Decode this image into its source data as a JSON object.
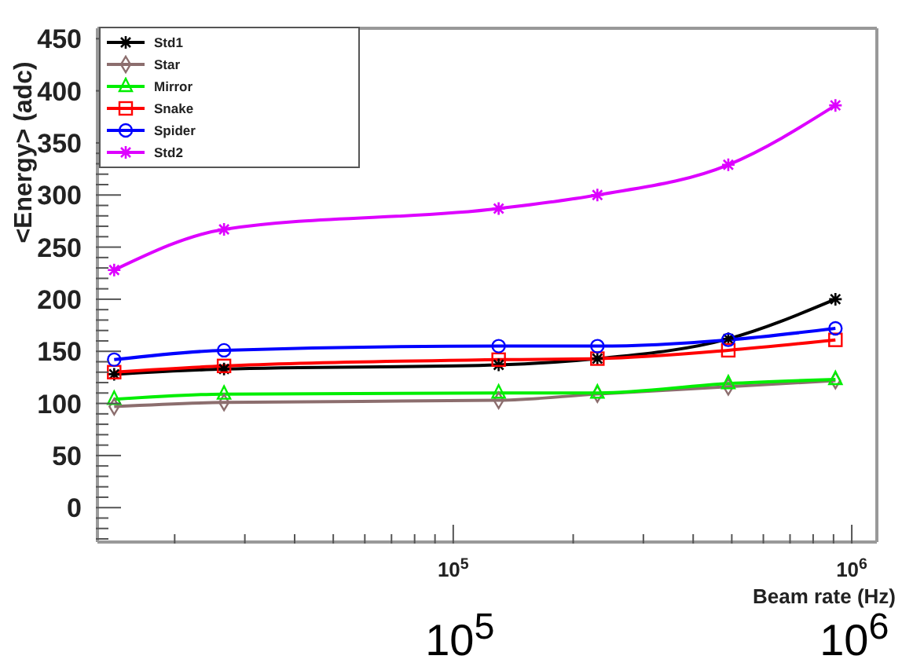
{
  "chart_data": {
    "type": "line",
    "xlabel": "Beam rate (Hz)",
    "ylabel": "<Energy> (adc)",
    "log": "x",
    "grid": false,
    "legend": "top left",
    "line_style": "solid",
    "x": [
      14100,
      26600,
      130000,
      230000,
      490000,
      910000
    ],
    "xlim": [
      12800,
      1156000
    ],
    "xticks": [
      {
        "value": 20000,
        "label": null
      },
      {
        "value": 30000,
        "label": null
      },
      {
        "value": 40000,
        "label": null
      },
      {
        "value": 50000,
        "label": null
      },
      {
        "value": 60000,
        "label": null
      },
      {
        "value": 70000,
        "label": null
      },
      {
        "value": 80000,
        "label": null
      },
      {
        "value": 90000,
        "label": null
      },
      {
        "value": 100000,
        "label": "10$^{5}$"
      },
      {
        "value": 200000,
        "label": null
      },
      {
        "value": 300000,
        "label": null
      },
      {
        "value": 400000,
        "label": null
      },
      {
        "value": 500000,
        "label": null
      },
      {
        "value": 600000,
        "label": null
      },
      {
        "value": 700000,
        "label": null
      },
      {
        "value": 800000,
        "label": null
      },
      {
        "value": 900000,
        "label": null
      },
      {
        "value": 1000000,
        "label": "10$^{6}$"
      }
    ],
    "ylim": [
      -33,
      460
    ],
    "yticks": [
      {
        "value": -30,
        "label": null
      },
      {
        "value": -20,
        "label": null
      },
      {
        "value": -10,
        "label": null
      },
      0,
      {
        "value": 10,
        "label": null
      },
      {
        "value": 20,
        "label": null
      },
      {
        "value": 30,
        "label": null
      },
      {
        "value": 40,
        "label": null
      },
      50,
      {
        "value": 60,
        "label": null
      },
      {
        "value": 70,
        "label": null
      },
      {
        "value": 80,
        "label": null
      },
      {
        "value": 90,
        "label": null
      },
      100,
      {
        "value": 110,
        "label": null
      },
      {
        "value": 120,
        "label": null
      },
      {
        "value": 130,
        "label": null
      },
      {
        "value": 140,
        "label": null
      },
      150,
      {
        "value": 160,
        "label": null
      },
      {
        "value": 170,
        "label": null
      },
      {
        "value": 180,
        "label": null
      },
      {
        "value": 190,
        "label": null
      },
      200,
      {
        "value": 210,
        "label": null
      },
      {
        "value": 220,
        "label": null
      },
      {
        "value": 230,
        "label": null
      },
      {
        "value": 240,
        "label": null
      },
      250,
      {
        "value": 260,
        "label": null
      },
      {
        "value": 270,
        "label": null
      },
      {
        "value": 280,
        "label": null
      },
      {
        "value": 290,
        "label": null
      },
      300,
      {
        "value": 310,
        "label": null
      },
      {
        "value": 320,
        "label": null
      },
      {
        "value": 330,
        "label": null
      },
      {
        "value": 340,
        "label": null
      },
      350,
      400,
      450
    ],
    "series": [
      {
        "name": "Std1",
        "color": "#000000",
        "marker": "cross",
        "values": [
          128,
          133,
          137,
          143,
          162,
          200
        ]
      },
      {
        "name": "Star",
        "color": "#8c6e6e",
        "marker": "diamond",
        "values": [
          97,
          101,
          103,
          109,
          116,
          122
        ]
      },
      {
        "name": "Mirror",
        "color": "#00ee00",
        "marker": "triangle",
        "values": [
          104,
          109,
          110,
          110,
          119,
          123
        ]
      },
      {
        "name": "Snake",
        "color": "#ff0000",
        "marker": "square",
        "values": [
          130,
          136,
          142,
          143,
          151,
          161
        ]
      },
      {
        "name": "Spider",
        "color": "#0000ff",
        "marker": "circle",
        "values": [
          142,
          151,
          155,
          155,
          161,
          172
        ]
      },
      {
        "name": "Std2",
        "color": "#dd00ff",
        "marker": "cross",
        "values": [
          228,
          267,
          287,
          300,
          329,
          386
        ]
      }
    ],
    "annotations": [
      "10$^{5}$",
      "10$^{6}$"
    ]
  }
}
